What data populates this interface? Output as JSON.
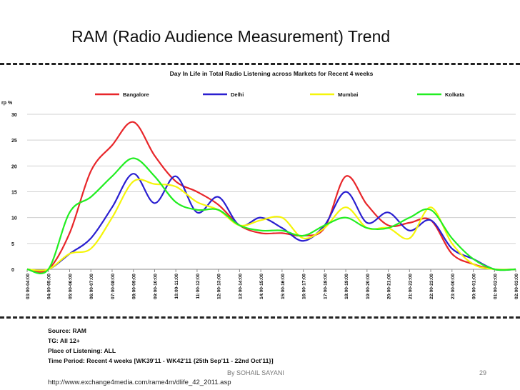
{
  "slide": {
    "title": "RAM (Radio Audience Measurement) Trend",
    "notes": [
      "Source: RAM",
      "TG: All 12+",
      "Place of Listening: ALL",
      "Time Period: Recent 4 weeks [WK39'11 - WK42'11 {25th Sep'11 - 22nd Oct'11}]"
    ],
    "author": "By SOHAIL SAYANI",
    "page_number": "29",
    "source_url": "http://www.exchange4media.com/rame4m/dlife_42_2011.asp"
  },
  "chart_data": {
    "type": "line",
    "title": "Day In Life in Total Radio Listening across Markets for Recent 4 weeks",
    "ylabel": "rp %",
    "xlabel": "",
    "ylim": [
      0,
      30
    ],
    "yticks": [
      0,
      5,
      10,
      15,
      20,
      25,
      30
    ],
    "grid": "horizontal",
    "legend_position": "top",
    "categories": [
      "03:00-04:00",
      "04:00-05:00",
      "05:00-06:00",
      "06:00-07:00",
      "07:00-08:00",
      "08:00-09:00",
      "09:00-10:00",
      "10:00-11:00",
      "11:00-12:00",
      "12:00-13:00",
      "13:00-14:00",
      "14:00-15:00",
      "15:00-16:00",
      "16:00-17:00",
      "17:00-18:00",
      "18:00-19:00",
      "19:00-20:00",
      "20:00-21:00",
      "21:00-22:00",
      "22:00-23:00",
      "23:00-00:00",
      "00:00-01:00",
      "01:00-02:00",
      "02:00-03:00"
    ],
    "series": [
      {
        "name": "Bangalore",
        "color": "#e8262a",
        "values": [
          0,
          0,
          7,
          19,
          24,
          28.5,
          22,
          17,
          15,
          12.5,
          8.5,
          7,
          7,
          6.5,
          8,
          18,
          12.5,
          8.5,
          9,
          9.5,
          3,
          1,
          0,
          0
        ]
      },
      {
        "name": "Delhi",
        "color": "#2a1fd0",
        "values": [
          0,
          0,
          3,
          6,
          12,
          18.5,
          12.8,
          18,
          11,
          14,
          8.5,
          10,
          8,
          5.5,
          8.5,
          15,
          9,
          11,
          7.5,
          9.5,
          4,
          2,
          0,
          0
        ]
      },
      {
        "name": "Mumbai",
        "color": "#f5f50a",
        "values": [
          0,
          0,
          3,
          4,
          10,
          17,
          16.5,
          16,
          13,
          11.5,
          8.5,
          9.5,
          10,
          6,
          8,
          12,
          8,
          8,
          6,
          12,
          5,
          1,
          0,
          0
        ]
      },
      {
        "name": "Kolkata",
        "color": "#22ee22",
        "values": [
          0,
          0,
          11,
          14,
          18,
          21.5,
          18,
          13,
          11.5,
          11.5,
          8.5,
          7.5,
          7.5,
          6.5,
          8.5,
          10,
          8,
          8,
          10,
          11.5,
          6,
          2,
          0,
          0
        ]
      }
    ]
  }
}
